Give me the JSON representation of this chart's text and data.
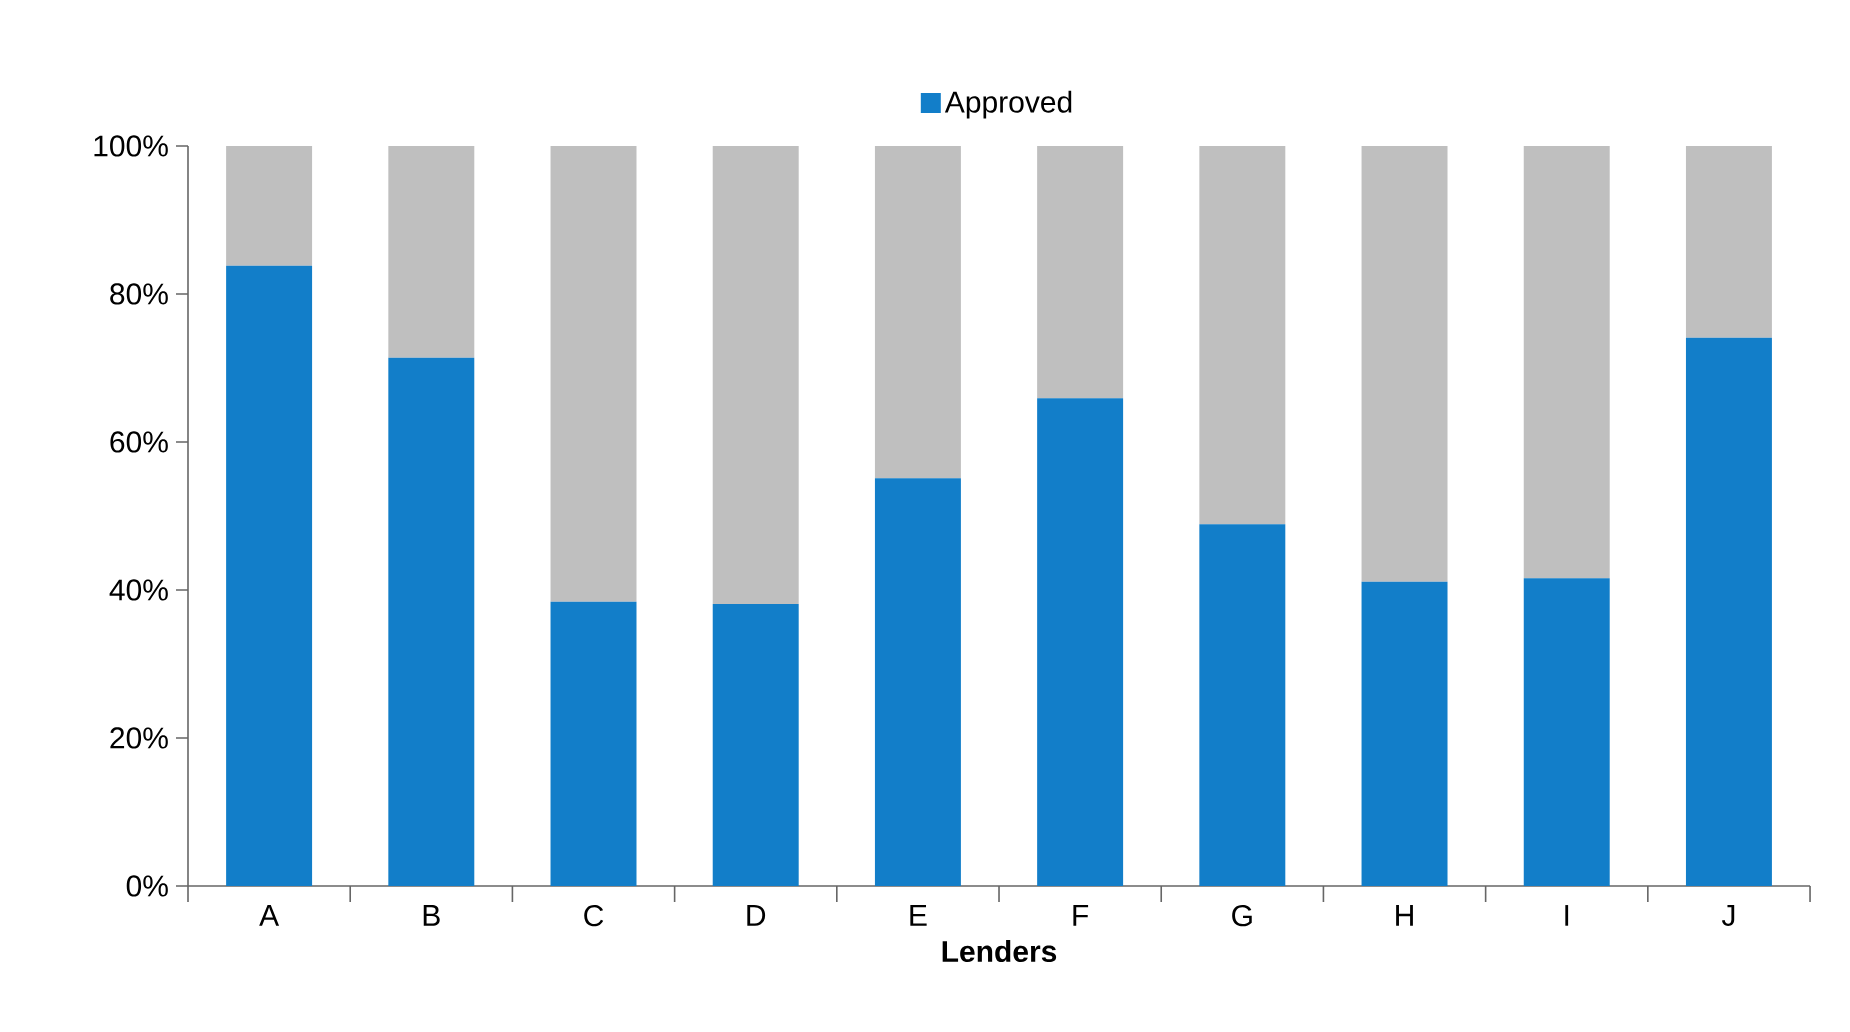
{
  "chart_data": {
    "type": "bar",
    "stacked": true,
    "xlabel": "Lenders",
    "categories": [
      "A",
      "B",
      "C",
      "D",
      "E",
      "F",
      "G",
      "H",
      "I",
      "J"
    ],
    "series": [
      {
        "name": "Approved",
        "color": "#127ec9",
        "values": [
          83.8,
          71.4,
          38.4,
          38.1,
          55.1,
          65.9,
          48.9,
          41.1,
          41.6,
          74.1
        ]
      },
      {
        "color": "#bfbfbf",
        "values": [
          16.2,
          28.6,
          61.6,
          61.9,
          44.9,
          34.1,
          51.1,
          58.9,
          58.4,
          25.9
        ]
      }
    ],
    "ylim": [
      0,
      100
    ],
    "yticks": [
      {
        "value": 0,
        "label": "0%"
      },
      {
        "value": 20,
        "label": "20%"
      },
      {
        "value": 40,
        "label": "40%"
      },
      {
        "value": 60,
        "label": "60%"
      },
      {
        "value": 80,
        "label": "80%"
      },
      {
        "value": 100,
        "label": "100%"
      }
    ],
    "grid": false,
    "legend": "top"
  }
}
